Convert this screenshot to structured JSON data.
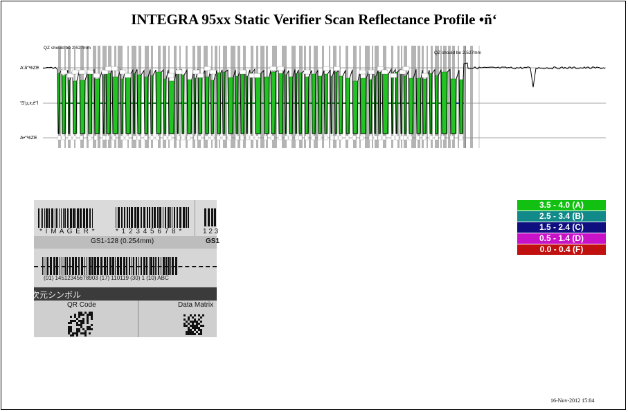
{
  "title": "INTEGRA 95xx Static Verifier Scan Reflectance Profile •ñ‘",
  "chart_data": {
    "type": "line",
    "y_axis_labels": [
      "A‘á“%ZE",
      "‘S‘µ‚x‚è“l",
      "A•“%ZE"
    ],
    "annotations": [
      "QZ should be 2.527mm",
      "QZ should be 2.527mm"
    ],
    "grid": true
  },
  "photo": {
    "label_imager": "* I M A G E R *",
    "label_digits": "* 1 2 3 4 5 6 7 8 *",
    "label_123": "1 2 3",
    "gs1_label": "GS1-128 (0.254mm)",
    "gs1_short": "GS1",
    "hri": "(01) 14512345678903 (17) 110119 (30) 1 (10) ABC",
    "section_header": "次元シンボル",
    "qr_label": "QR Code",
    "dm_label": "Data Matrix"
  },
  "legend": {
    "items": [
      {
        "label": "3.5 - 4.0 (A)",
        "color": "#11c011"
      },
      {
        "label": "2.5 - 3.4 (B)",
        "color": "#138a8a"
      },
      {
        "label": "1.5 - 2.4 (C)",
        "color": "#0f0f80"
      },
      {
        "label": "0.5 - 1.4 (D)",
        "color": "#c812c8"
      },
      {
        "label": "0.0 - 0.4 (F)",
        "color": "#c01010"
      }
    ]
  },
  "footer": {
    "date": "16-Nov-2012 15:04"
  }
}
